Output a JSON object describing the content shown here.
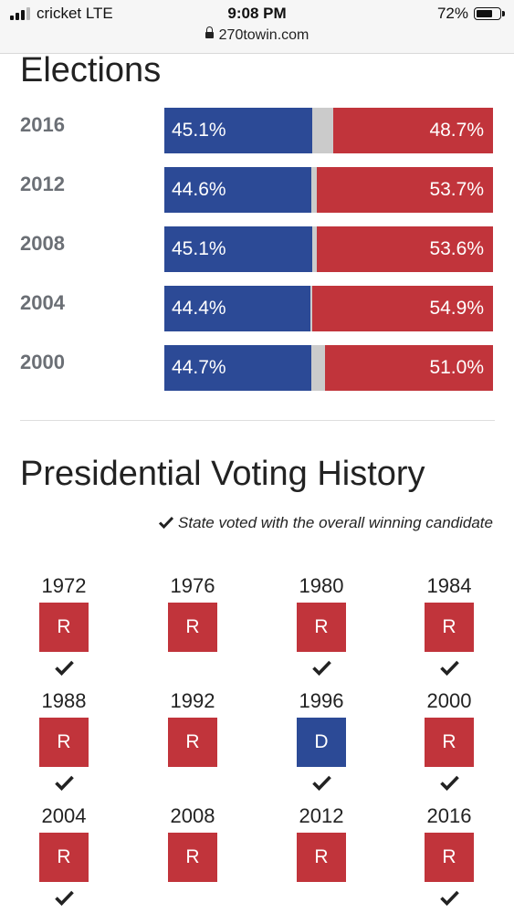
{
  "status_bar": {
    "carrier": "cricket  LTE",
    "time": "9:08 PM",
    "battery": "72%",
    "url": "270towin.com"
  },
  "elections": {
    "title": "Elections",
    "rows": [
      {
        "year": "2016",
        "dem_pct": "45.1%",
        "rep_pct": "48.7%",
        "dem": 45.1,
        "rep": 48.7
      },
      {
        "year": "2012",
        "dem_pct": "44.6%",
        "rep_pct": "53.7%",
        "dem": 44.6,
        "rep": 53.7
      },
      {
        "year": "2008",
        "dem_pct": "45.1%",
        "rep_pct": "53.6%",
        "dem": 45.1,
        "rep": 53.6
      },
      {
        "year": "2004",
        "dem_pct": "44.4%",
        "rep_pct": "54.9%",
        "dem": 44.4,
        "rep": 54.9
      },
      {
        "year": "2000",
        "dem_pct": "44.7%",
        "rep_pct": "51.0%",
        "dem": 44.7,
        "rep": 51.0
      }
    ]
  },
  "history": {
    "title": "Presidential Voting History",
    "legend": "State voted with the overall winning candidate",
    "years": [
      {
        "year": "1972",
        "party": "R",
        "winner": true
      },
      {
        "year": "1976",
        "party": "R",
        "winner": false
      },
      {
        "year": "1980",
        "party": "R",
        "winner": true
      },
      {
        "year": "1984",
        "party": "R",
        "winner": true
      },
      {
        "year": "1988",
        "party": "R",
        "winner": true
      },
      {
        "year": "1992",
        "party": "R",
        "winner": false
      },
      {
        "year": "1996",
        "party": "D",
        "winner": true
      },
      {
        "year": "2000",
        "party": "R",
        "winner": true
      },
      {
        "year": "2004",
        "party": "R",
        "winner": true
      },
      {
        "year": "2008",
        "party": "R",
        "winner": false
      },
      {
        "year": "2012",
        "party": "R",
        "winner": false
      },
      {
        "year": "2016",
        "party": "R",
        "winner": true
      }
    ]
  },
  "colors": {
    "dem": "#2c4a96",
    "rep": "#c1343b",
    "other": "#cbcbcb"
  }
}
